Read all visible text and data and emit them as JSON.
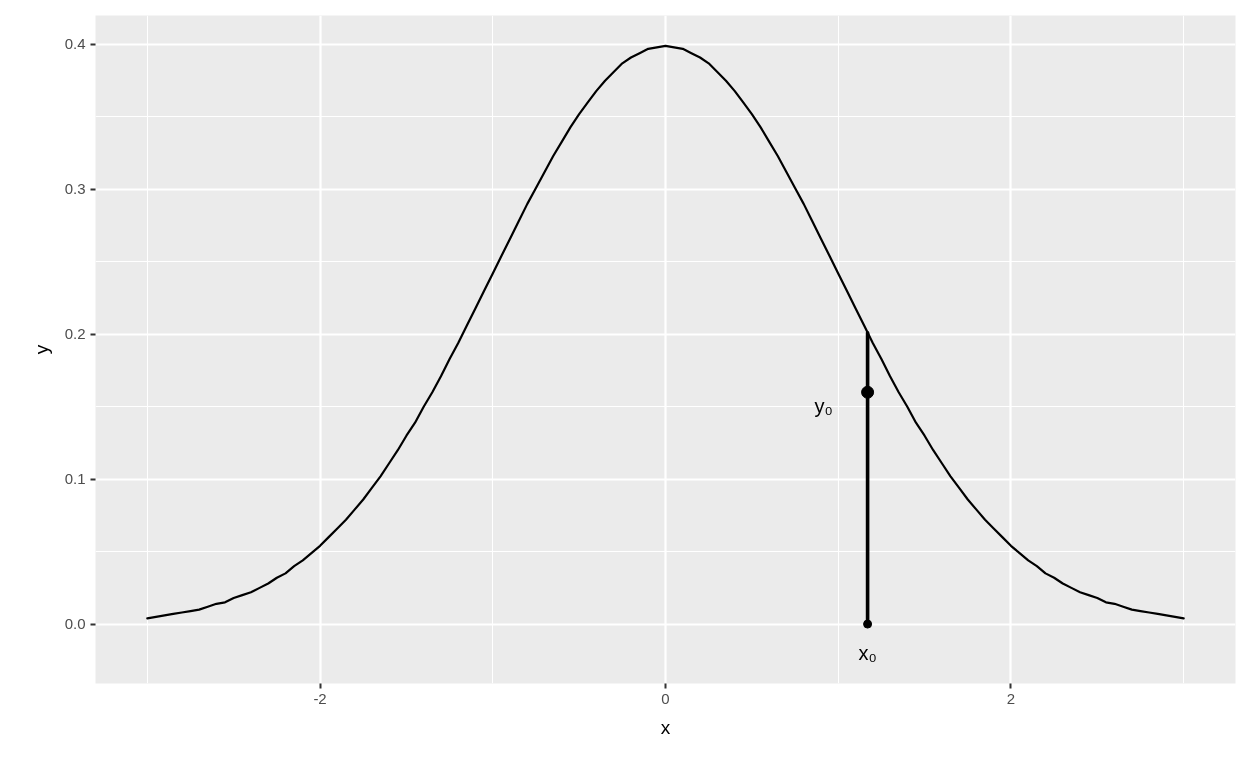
{
  "chart_data": {
    "type": "line",
    "xlabel": "x",
    "ylabel": "y",
    "xlim": [
      -3.3,
      3.3
    ],
    "ylim": [
      -0.041,
      0.42
    ],
    "xticks": [
      -2,
      0,
      2
    ],
    "yticks": [
      {
        "value": 0,
        "label": "0.0"
      },
      0.1,
      0.2,
      0.3,
      0.4
    ],
    "grid": true,
    "series": [
      {
        "color": "#000000",
        "x": [
          -3.0,
          -2.95,
          -2.9,
          -2.85,
          -2.8,
          -2.75,
          -2.7,
          -2.65,
          -2.6,
          -2.55,
          -2.5,
          -2.45,
          -2.4,
          -2.35,
          -2.3,
          -2.25,
          -2.2,
          -2.15,
          -2.1,
          -2.05,
          -2.0,
          -1.95,
          -1.9,
          -1.85,
          -1.8,
          -1.75,
          -1.7,
          -1.65,
          -1.6,
          -1.55,
          -1.5,
          -1.45,
          -1.4,
          -1.35,
          -1.3,
          -1.25,
          -1.2,
          -1.15,
          -1.1,
          -1.05,
          -1.0,
          -0.95,
          -0.9,
          -0.85,
          -0.8,
          -0.75,
          -0.7,
          -0.65,
          -0.6,
          -0.55,
          -0.5,
          -0.45,
          -0.4,
          -0.35,
          -0.3,
          -0.25,
          -0.2,
          -0.15,
          -0.1,
          -0.05,
          0.0,
          0.05,
          0.1,
          0.15,
          0.2,
          0.25,
          0.3,
          0.35,
          0.4,
          0.45,
          0.5,
          0.55,
          0.6,
          0.65,
          0.7,
          0.75,
          0.8,
          0.85,
          0.9,
          0.95,
          1.0,
          1.05,
          1.1,
          1.15,
          1.2,
          1.25,
          1.3,
          1.35,
          1.4,
          1.45,
          1.5,
          1.55,
          1.6,
          1.65,
          1.7,
          1.75,
          1.8,
          1.85,
          1.9,
          1.95,
          2.0,
          2.05,
          2.1,
          2.15,
          2.2,
          2.25,
          2.3,
          2.35,
          2.4,
          2.45,
          2.5,
          2.55,
          2.6,
          2.65,
          2.7,
          2.75,
          2.8,
          2.85,
          2.9,
          2.95,
          3.0
        ],
        "values": [
          0.004,
          0.005,
          0.006,
          0.007,
          0.008,
          0.009,
          0.01,
          0.012,
          0.014,
          0.015,
          0.018,
          0.02,
          0.022,
          0.025,
          0.028,
          0.032,
          0.035,
          0.04,
          0.044,
          0.049,
          0.054,
          0.06,
          0.066,
          0.072,
          0.079,
          0.086,
          0.094,
          0.102,
          0.111,
          0.12,
          0.13,
          0.139,
          0.15,
          0.16,
          0.171,
          0.183,
          0.194,
          0.206,
          0.218,
          0.23,
          0.242,
          0.254,
          0.266,
          0.278,
          0.29,
          0.301,
          0.312,
          0.323,
          0.333,
          0.343,
          0.352,
          0.36,
          0.368,
          0.375,
          0.381,
          0.387,
          0.391,
          0.394,
          0.397,
          0.398,
          0.399,
          0.398,
          0.397,
          0.394,
          0.391,
          0.387,
          0.381,
          0.375,
          0.368,
          0.36,
          0.352,
          0.343,
          0.333,
          0.323,
          0.312,
          0.301,
          0.29,
          0.278,
          0.266,
          0.254,
          0.242,
          0.23,
          0.218,
          0.206,
          0.194,
          0.183,
          0.171,
          0.16,
          0.15,
          0.139,
          0.13,
          0.12,
          0.111,
          0.102,
          0.094,
          0.086,
          0.079,
          0.072,
          0.066,
          0.06,
          0.054,
          0.049,
          0.044,
          0.04,
          0.035,
          0.032,
          0.028,
          0.025,
          0.022,
          0.02,
          0.018,
          0.015,
          0.014,
          0.012,
          0.01,
          0.009,
          0.008,
          0.007,
          0.006,
          0.005,
          0.004
        ]
      },
      {
        "type": "line",
        "color": "#000000",
        "x": [
          1.17,
          1.17
        ],
        "values": [
          0,
          0.201
        ]
      },
      {
        "type": "scatter",
        "marker": "circle",
        "color": "#000000",
        "x": [
          1.17
        ],
        "values": [
          0.16
        ]
      },
      {
        "type": "scatter",
        "marker": "circle",
        "color": "#000000",
        "x": [
          1.17
        ],
        "values": [
          0
        ]
      }
    ],
    "annotations": [
      {
        "text": "y₀",
        "x": 1.17,
        "y": 0.16
      },
      {
        "text": "x₀",
        "x": 1.17,
        "y": 0
      }
    ]
  }
}
